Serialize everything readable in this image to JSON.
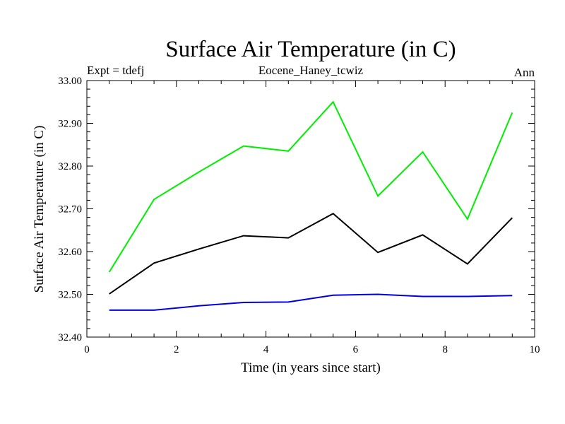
{
  "chart_data": {
    "type": "line",
    "title": "Surface Air Temperature (in C)",
    "subtitle_left": "Expt = tdefj",
    "subtitle_center": "Eocene_Haney_tcwiz",
    "subtitle_right": "Ann",
    "xlabel": "Time (in years since start)",
    "ylabel": "Surface Air Temperature (in C)",
    "xlim": [
      0,
      10
    ],
    "ylim": [
      32.4,
      33.0
    ],
    "xticks": [
      0,
      2,
      4,
      6,
      8,
      10
    ],
    "yticks": [
      32.4,
      32.5,
      32.6,
      32.7,
      32.8,
      32.9,
      33.0
    ],
    "ytick_labels": [
      "32.40",
      "32.50",
      "32.60",
      "32.70",
      "32.80",
      "32.90",
      "33.00"
    ],
    "grid": false,
    "x": [
      0.5,
      1.5,
      2.5,
      3.5,
      4.5,
      5.5,
      6.5,
      7.5,
      8.5,
      9.5
    ],
    "series": [
      {
        "color": "#00ee00",
        "values": [
          32.552,
          32.722,
          32.786,
          32.847,
          32.835,
          32.95,
          32.73,
          32.833,
          32.676,
          32.925
        ]
      },
      {
        "color": "#000000",
        "values": [
          32.501,
          32.573,
          32.606,
          32.637,
          32.632,
          32.689,
          32.598,
          32.639,
          32.571,
          32.679
        ]
      },
      {
        "color": "#0000dd",
        "values": [
          32.463,
          32.463,
          32.473,
          32.481,
          32.482,
          32.498,
          32.5,
          32.495,
          32.495,
          32.497
        ]
      }
    ]
  }
}
